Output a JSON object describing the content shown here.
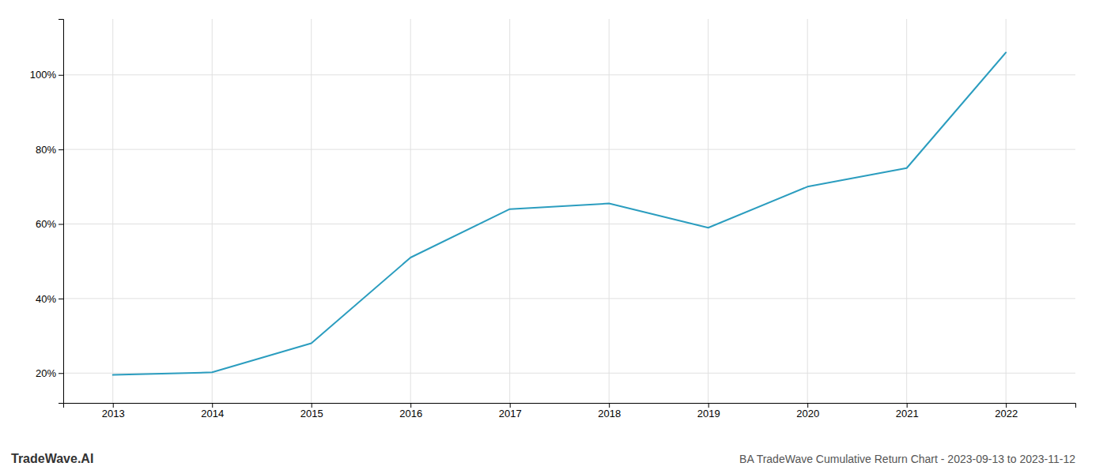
{
  "chart_data": {
    "type": "line",
    "title": "BA TradeWave Cumulative Return Chart - 2023-09-13 to 2023-11-12",
    "annotations": [
      "TradeWave.AI"
    ],
    "x": [
      2013,
      2014,
      2015,
      2016,
      2017,
      2018,
      2019,
      2020,
      2021,
      2022
    ],
    "values": [
      19.5,
      20.2,
      28.0,
      51.0,
      64.0,
      65.5,
      59.0,
      70.0,
      75.0,
      106.0
    ],
    "color": "#2b9dbf",
    "xlim": [
      2012.5,
      2022.7
    ],
    "ylim": [
      12,
      115
    ],
    "xticks": [
      2013,
      2014,
      2015,
      2016,
      2017,
      2018,
      2019,
      2020,
      2021,
      2022
    ],
    "yticks": [
      {
        "value": 20,
        "label": "20%"
      },
      {
        "value": 40,
        "label": "40%"
      },
      {
        "value": 60,
        "label": "60%"
      },
      {
        "value": 80,
        "label": "80%"
      },
      {
        "value": 100,
        "label": "100%"
      }
    ],
    "grid": true
  }
}
